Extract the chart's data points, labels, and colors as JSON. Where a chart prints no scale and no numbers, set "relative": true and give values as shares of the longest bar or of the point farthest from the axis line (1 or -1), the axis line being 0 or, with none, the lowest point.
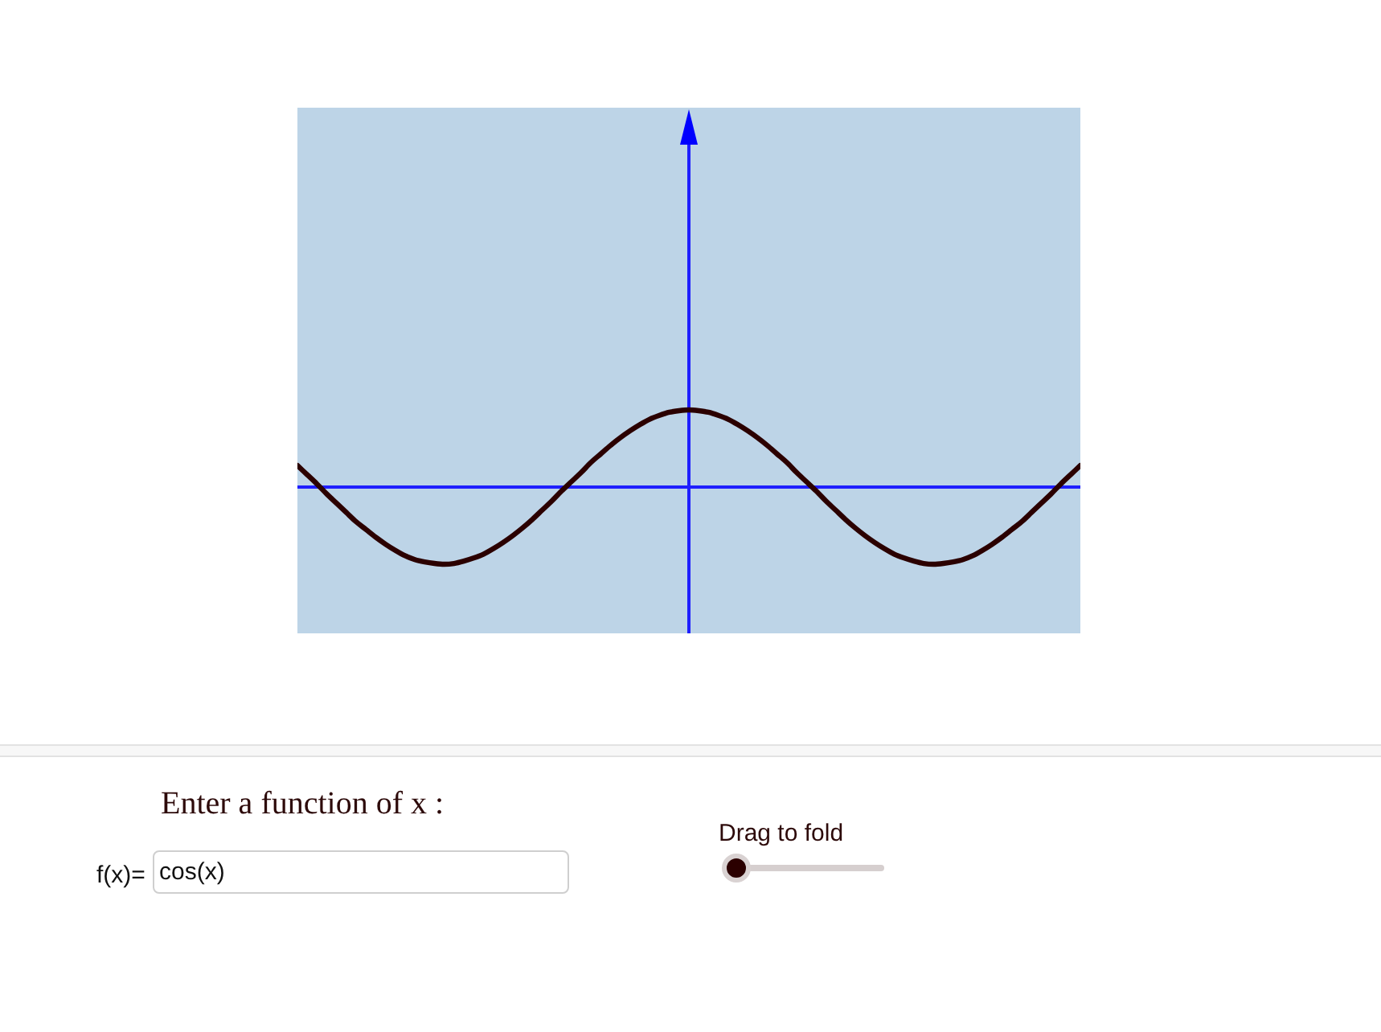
{
  "chart_data": {
    "type": "line",
    "relative": true,
    "categories": [
      null,
      null,
      null,
      null,
      null,
      null,
      null,
      null,
      null,
      null,
      null,
      null,
      null,
      null,
      null,
      null,
      null,
      null,
      null,
      null,
      null,
      null,
      null,
      null,
      null,
      null,
      null,
      null,
      null,
      null,
      null,
      null,
      null,
      null,
      null,
      null,
      null,
      null,
      null,
      null,
      null,
      null,
      null,
      null,
      null,
      null,
      null,
      null,
      null,
      null,
      null,
      null,
      null,
      null,
      null,
      null,
      null,
      null,
      null,
      null,
      null,
      null,
      null,
      null,
      null,
      null,
      null,
      null,
      null,
      null,
      null,
      null,
      null,
      null,
      null,
      null,
      null,
      null,
      null,
      null,
      null
    ],
    "values": [
      0.28,
      0.16,
      0.04,
      -0.09,
      -0.21,
      -0.33,
      -0.45,
      -0.55,
      -0.65,
      -0.74,
      -0.82,
      -0.89,
      -0.94,
      -0.97,
      -0.99,
      -1,
      -0.99,
      -0.96,
      -0.92,
      -0.87,
      -0.8,
      -0.72,
      -0.63,
      -0.53,
      -0.42,
      -0.3,
      -0.18,
      -0.05,
      0.07,
      0.19,
      0.32,
      0.43,
      0.54,
      0.64,
      0.73,
      0.81,
      0.88,
      0.93,
      0.97,
      0.99,
      1,
      0.99,
      0.97,
      0.93,
      0.88,
      0.81,
      0.73,
      0.64,
      0.54,
      0.43,
      0.32,
      0.19,
      0.07,
      -0.05,
      -0.18,
      -0.3,
      -0.42,
      -0.53,
      -0.63,
      -0.72,
      -0.8,
      -0.87,
      -0.92,
      -0.96,
      -0.99,
      -1,
      -0.99,
      -0.97,
      -0.94,
      -0.89,
      -0.82,
      -0.74,
      -0.65,
      -0.55,
      -0.45,
      -0.33,
      -0.21,
      -0.09,
      0.04,
      0.16,
      0.28
    ],
    "color": "#2b0000",
    "ref_lines": [
      {
        "axis": "y",
        "value": 0,
        "color": "#1f1fff"
      }
    ],
    "annotations": [
      "Enter a function of x :",
      "f(x)=",
      "cos(x)",
      "Drag to fold"
    ]
  }
}
